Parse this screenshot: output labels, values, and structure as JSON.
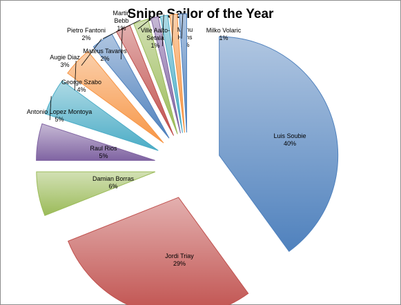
{
  "chart_data": {
    "type": "pie",
    "title": "Snipe Sailor of the Year",
    "label_format": "name + percent",
    "exploded": true,
    "slices": [
      {
        "name": "Luis Soubie",
        "percent": "40%",
        "value": 40,
        "color": "#4f81bd"
      },
      {
        "name": "Jordi Triay",
        "percent": "29%",
        "value": 29,
        "color": "#c0504d"
      },
      {
        "name": "Damian Borras",
        "percent": "6%",
        "value": 6,
        "color": "#9bbb59"
      },
      {
        "name": "Raul Rios",
        "percent": "5%",
        "value": 5,
        "color": "#8064a2"
      },
      {
        "name": "Antonio Lopez Montoya",
        "percent": "5%",
        "value": 5,
        "color": "#4bacc6"
      },
      {
        "name": "George Szabo",
        "percent": "4%",
        "value": 4,
        "color": "#f79646"
      },
      {
        "name": "Augie Diaz",
        "percent": "3%",
        "value": 3,
        "color": "#4f81bd"
      },
      {
        "name": "Mateus Tavares",
        "percent": "2%",
        "value": 2,
        "color": "#c0504d"
      },
      {
        "name": "Pietro Fantoni",
        "percent": "2%",
        "value": 2,
        "color": "#9bbb59"
      },
      {
        "name": "Martin Bebb",
        "percent": "1%",
        "value": 1,
        "color": "#8064a2"
      },
      {
        "name": "Ville Aalto-Setala",
        "percent": "1%",
        "value": 1,
        "color": "#4bacc6"
      },
      {
        "name": "Manu Hens",
        "percent": "1%",
        "value": 1,
        "color": "#f79646"
      },
      {
        "name": "Milko Volaric",
        "percent": "1%",
        "value": 1,
        "color": "#4f81bd"
      }
    ]
  }
}
